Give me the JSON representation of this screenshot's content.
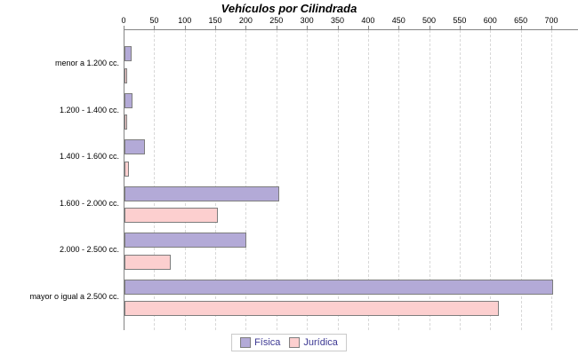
{
  "title": "Vehículos por Cilindrada",
  "chart_data": {
    "type": "bar",
    "orientation": "horizontal",
    "title": "Vehículos por Cilindrada",
    "categories": [
      "menor a 1.200 cc.",
      "1.200 - 1.400 cc.",
      "1.400 - 1.600 cc.",
      "1.600 - 2.000 cc.",
      "2.000 - 2.500 cc.",
      "mayor o igual a 2.500 cc."
    ],
    "series": [
      {
        "name": "Física",
        "color": "#b3aad7",
        "values": [
          9,
          10,
          30,
          250,
          196,
          698
        ]
      },
      {
        "name": "Jurídica",
        "color": "#fccfcf",
        "values": [
          2,
          1,
          5,
          150,
          73,
          610
        ]
      }
    ],
    "xlabel": "",
    "ylabel": "",
    "xlim": [
      0,
      700
    ],
    "x_ticks": [
      0,
      50,
      100,
      150,
      200,
      250,
      300,
      350,
      400,
      450,
      500,
      550,
      600,
      650,
      700
    ],
    "x_axis_position": "top",
    "grid": "vertical-dashed",
    "legend_position": "bottom-center"
  },
  "colors": {
    "axis": "#848484",
    "gridline": "#d8d8d8",
    "bar_border": "#7d7d7d",
    "legend_text": "#3c3893",
    "legend_border": "#c9c9c9",
    "title_text": "#000000"
  }
}
